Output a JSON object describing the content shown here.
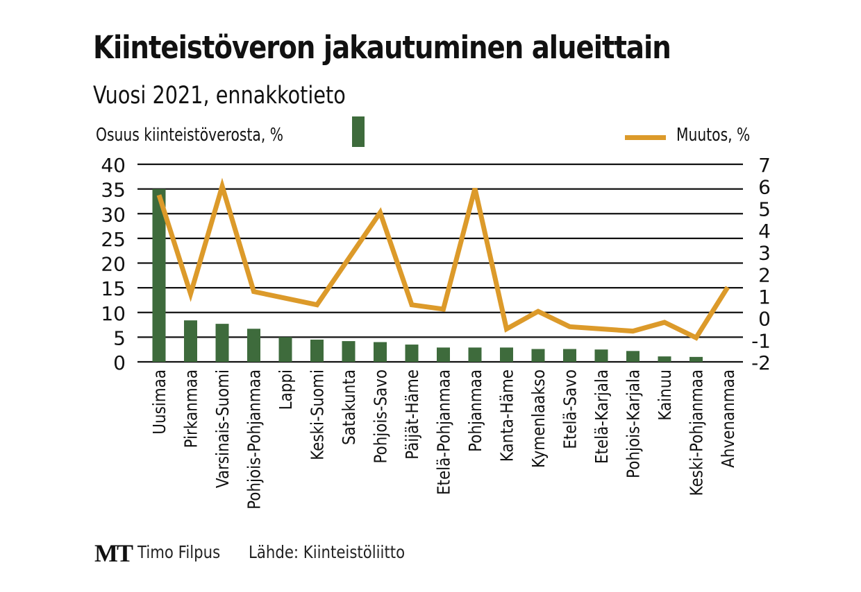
{
  "header": {
    "title": "Kiinteistöveron jakautuminen alueittain",
    "subtitle": "Vuosi 2021, ennakkotieto"
  },
  "footer": {
    "logo": "MT",
    "author": "Timo Filpus",
    "source": "Lähde: Kiinteistöliitto"
  },
  "colors": {
    "bar": "#3e6b3c",
    "line": "#dc9a2a",
    "grid": "#111111"
  },
  "chart_data": {
    "type": "bar+line",
    "title": "Kiinteistöveron jakautuminen alueittain",
    "subtitle": "Vuosi 2021, ennakkotieto",
    "categories": [
      "Uusimaa",
      "Pirkanmaa",
      "Varsinais-Suomi",
      "Pohjois-Pohjanmaa",
      "Lappi",
      "Keski-Suomi",
      "Satakunta",
      "Pohjois-Savo",
      "Päijät-Häme",
      "Etelä-Pohjanmaa",
      "Pohjanmaa",
      "Kanta-Häme",
      "Kymenlaakso",
      "Etelä-Savo",
      "Etelä-Karjala",
      "Pohjois-Karjala",
      "Kainuu",
      "Keski-Pohjanmaa",
      "Ahvenanmaa"
    ],
    "series": [
      {
        "name": "Osuus kiinteistöverosta, %",
        "type": "bar",
        "axis": "left",
        "values": [
          35.0,
          8.4,
          7.7,
          6.7,
          5.0,
          4.5,
          4.2,
          4.0,
          3.5,
          2.9,
          2.9,
          2.9,
          2.6,
          2.6,
          2.5,
          2.2,
          1.1,
          1.0,
          0.0
        ]
      },
      {
        "name": "Muutos, %",
        "type": "line",
        "axis": "right",
        "values": [
          5.6,
          1.1,
          6.0,
          1.2,
          0.9,
          0.6,
          2.7,
          4.8,
          0.6,
          0.4,
          5.9,
          -0.5,
          0.3,
          -0.4,
          -0.5,
          -0.6,
          -0.2,
          -0.9,
          1.4
        ]
      }
    ],
    "left_axis": {
      "label": "Osuus kiinteistöverosta, %",
      "ylim": [
        0,
        40
      ],
      "ticks": [
        "40",
        "35",
        "30",
        "25",
        "20",
        "15",
        "10",
        "5",
        "0"
      ]
    },
    "right_axis": {
      "label": "Muutos, %",
      "ylim": [
        -2,
        7
      ],
      "ticks": [
        "7",
        "6",
        "5",
        "4",
        "3",
        "2",
        "1",
        "0",
        "-1",
        "-2"
      ]
    },
    "grid": true,
    "legend": [
      "top-left",
      "top-right"
    ]
  }
}
